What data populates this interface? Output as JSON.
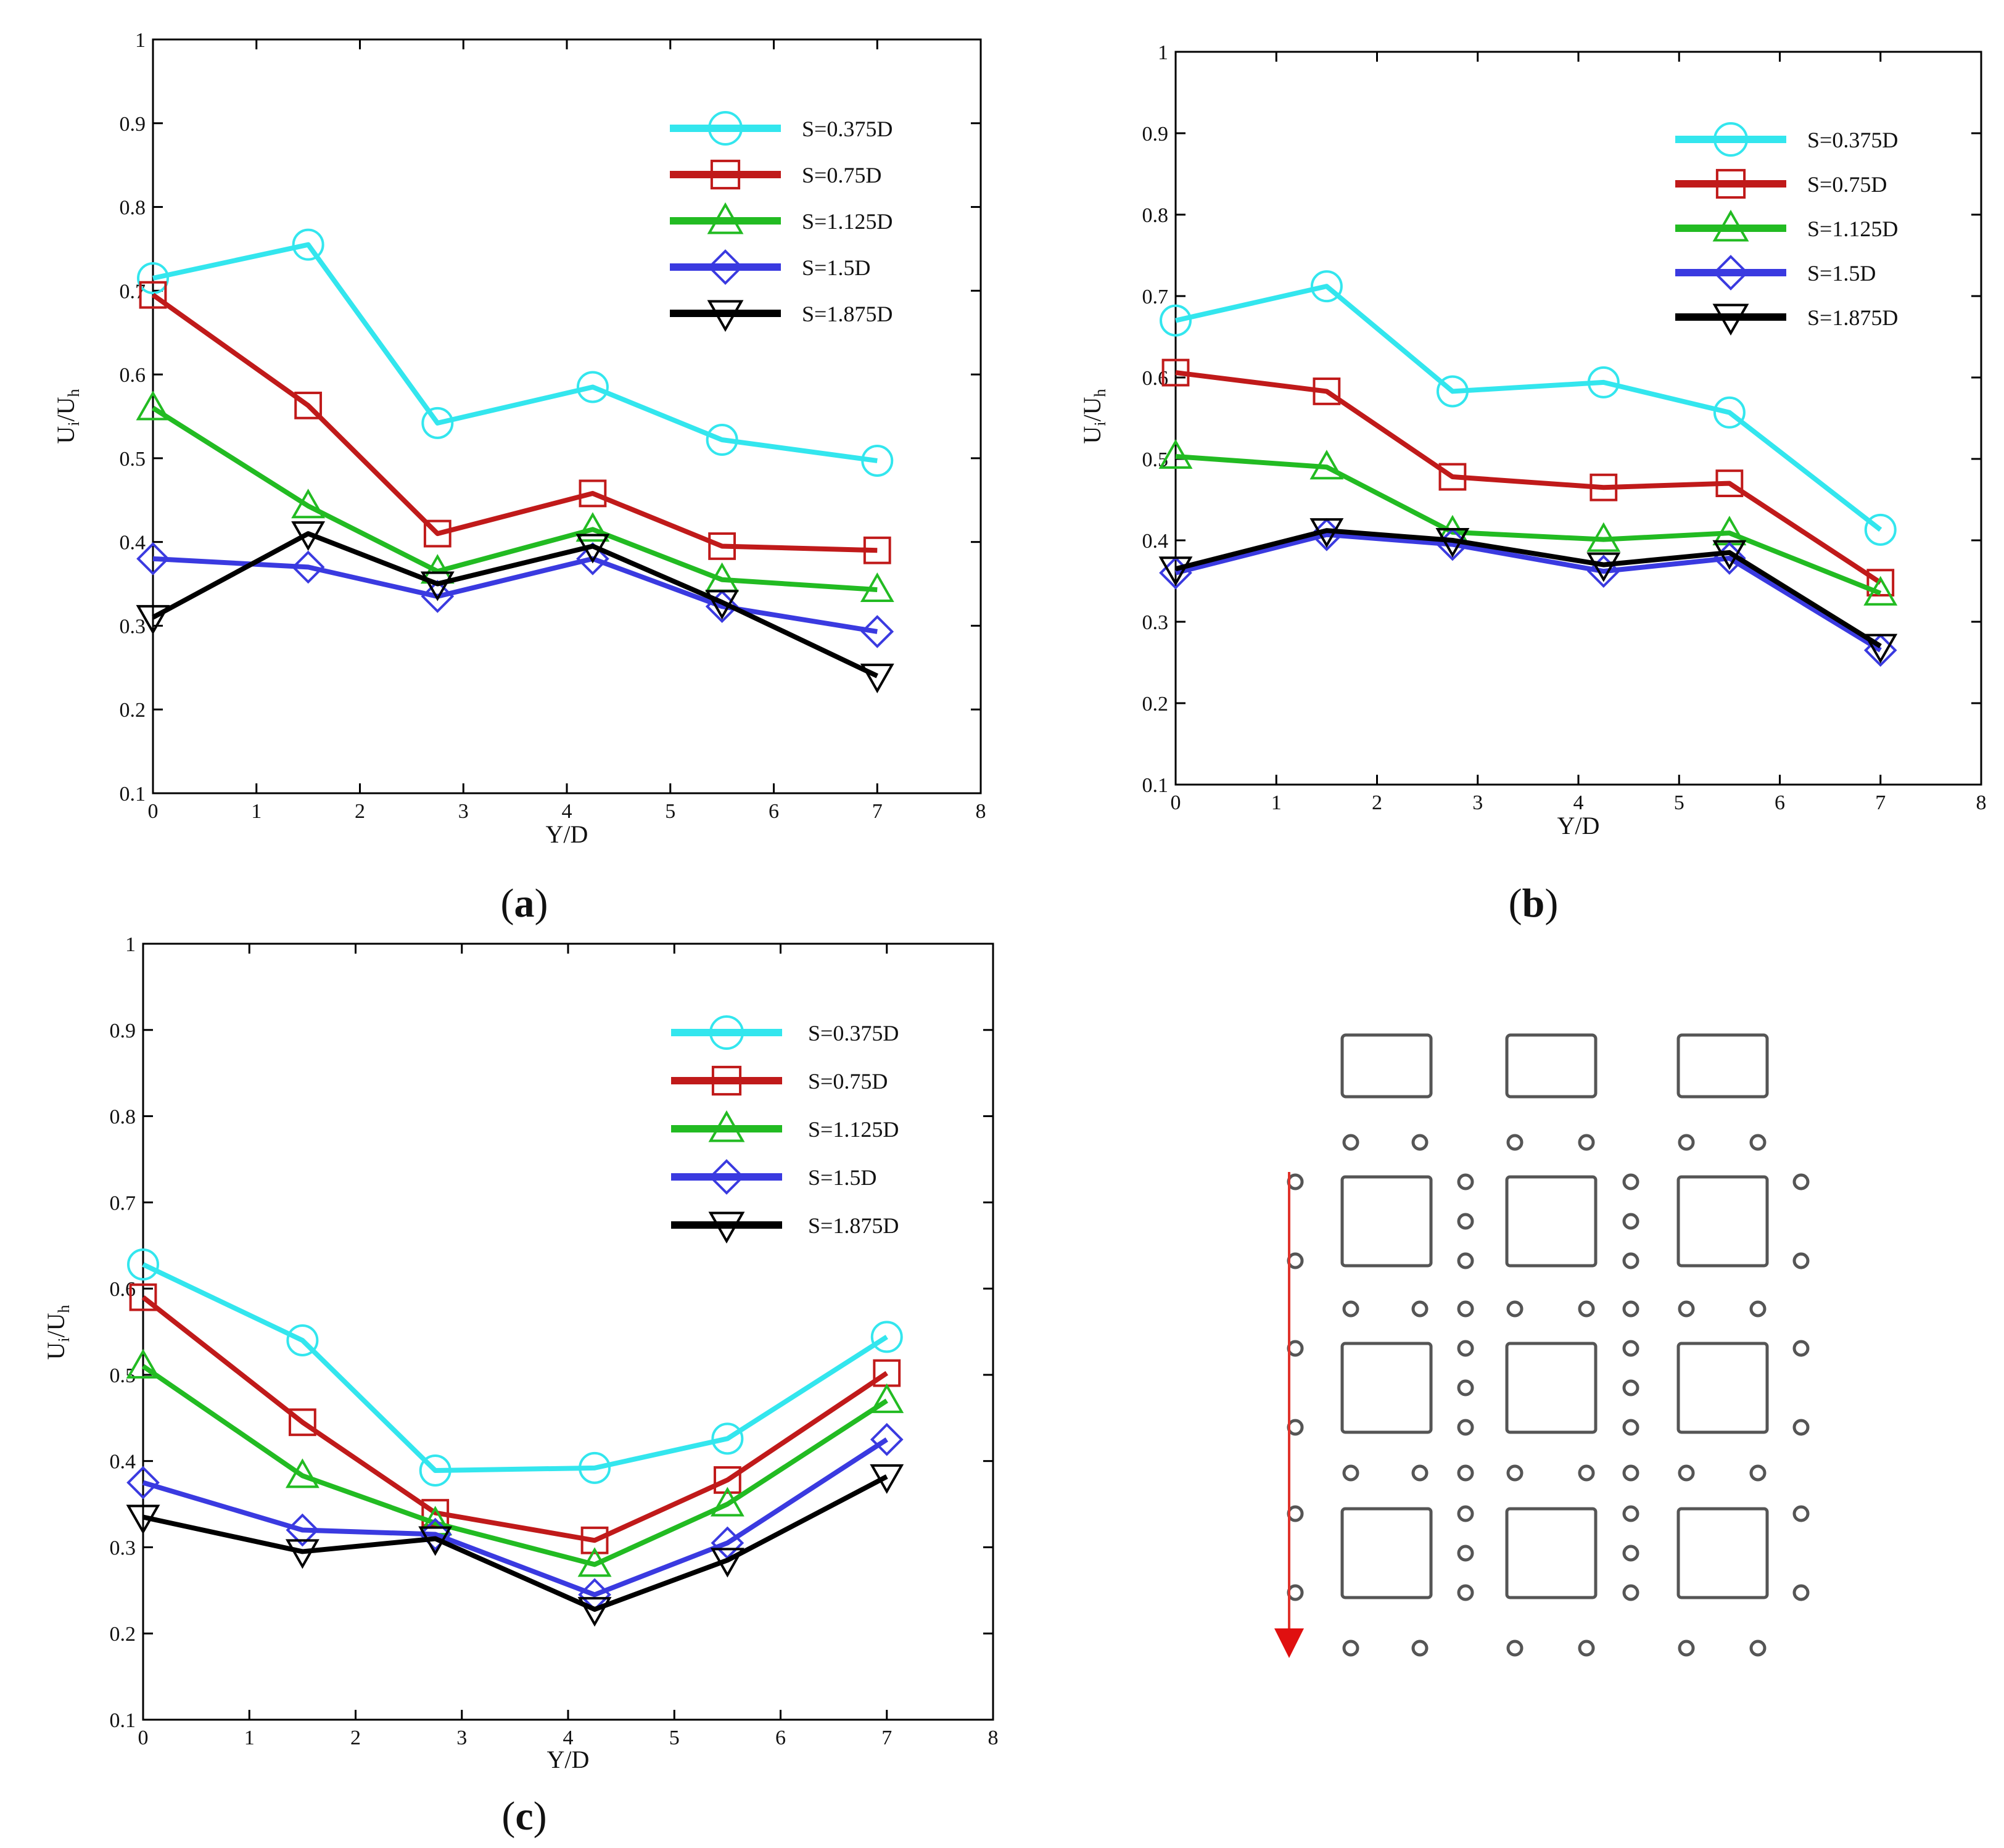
{
  "panel_labels": [
    "(a)",
    "(b)",
    "(c)"
  ],
  "series_colors": {
    "S=0.375D": "#33e6ee",
    "S=0.75D": "#c01a1a",
    "S=1.125D": "#22bb22",
    "S=1.5D": "#3a3ae0",
    "S=1.875D": "#000000"
  },
  "chart_data": [
    {
      "type": "line",
      "panel": "(a)",
      "xlabel": "Y/D",
      "ylabel": "U_i/U_h",
      "xlim": [
        0,
        8
      ],
      "ylim": [
        0.1,
        1
      ],
      "xticks": [
        "0",
        "1",
        "2",
        "3",
        "4",
        "5",
        "6",
        "7",
        "8"
      ],
      "yticks": [
        "0.1",
        "0.2",
        "0.3",
        "0.4",
        "0.5",
        "0.6",
        "0.7",
        "0.8",
        "0.9",
        "1"
      ],
      "grid": false,
      "legend": "top-right",
      "x": [
        0,
        1.5,
        2.75,
        4.25,
        5.5,
        7
      ],
      "series": [
        {
          "name": "S=0.375D",
          "marker": "circle",
          "values": [
            0.715,
            0.755,
            0.542,
            0.585,
            0.522,
            0.497
          ]
        },
        {
          "name": "S=0.75D",
          "marker": "square",
          "values": [
            0.695,
            0.563,
            0.41,
            0.458,
            0.395,
            0.39
          ]
        },
        {
          "name": "S=1.125D",
          "marker": "triangle-up",
          "values": [
            0.56,
            0.443,
            0.365,
            0.415,
            0.355,
            0.343
          ]
        },
        {
          "name": "S=1.5D",
          "marker": "diamond",
          "values": [
            0.38,
            0.37,
            0.335,
            0.38,
            0.323,
            0.293
          ]
        },
        {
          "name": "S=1.875D",
          "marker": "triangle-down",
          "values": [
            0.31,
            0.41,
            0.35,
            0.395,
            0.328,
            0.24
          ]
        }
      ]
    },
    {
      "type": "line",
      "panel": "(b)",
      "xlabel": "Y/D",
      "ylabel": "U_i/U_h",
      "xlim": [
        0,
        8
      ],
      "ylim": [
        0.1,
        1
      ],
      "xticks": [
        "0",
        "1",
        "2",
        "3",
        "4",
        "5",
        "6",
        "7",
        "8"
      ],
      "yticks": [
        "0.1",
        "0.2",
        "0.3",
        "0.4",
        "0.5",
        "0.6",
        "0.7",
        "0.8",
        "0.9",
        "1"
      ],
      "grid": false,
      "legend": "top-right",
      "x": [
        0,
        1.5,
        2.75,
        4.25,
        5.5,
        7
      ],
      "series": [
        {
          "name": "S=0.375D",
          "marker": "circle",
          "values": [
            0.67,
            0.712,
            0.583,
            0.594,
            0.557,
            0.413
          ]
        },
        {
          "name": "S=0.75D",
          "marker": "square",
          "values": [
            0.606,
            0.583,
            0.478,
            0.465,
            0.47,
            0.348
          ]
        },
        {
          "name": "S=1.125D",
          "marker": "triangle-up",
          "values": [
            0.503,
            0.49,
            0.41,
            0.401,
            0.409,
            0.335
          ]
        },
        {
          "name": "S=1.5D",
          "marker": "diamond",
          "values": [
            0.36,
            0.407,
            0.395,
            0.362,
            0.378,
            0.265
          ]
        },
        {
          "name": "S=1.875D",
          "marker": "triangle-down",
          "values": [
            0.365,
            0.412,
            0.4,
            0.37,
            0.385,
            0.27
          ]
        }
      ]
    },
    {
      "type": "line",
      "panel": "(c)",
      "xlabel": "Y/D",
      "ylabel": "U_i/U_h",
      "xlim": [
        0,
        8
      ],
      "ylim": [
        0.1,
        1
      ],
      "xticks": [
        "0",
        "1",
        "2",
        "3",
        "4",
        "5",
        "6",
        "7",
        "8"
      ],
      "yticks": [
        "0.1",
        "0.2",
        "0.3",
        "0.4",
        "0.5",
        "0.6",
        "0.7",
        "0.8",
        "0.9",
        "1"
      ],
      "grid": false,
      "legend": "top-right",
      "x": [
        0,
        1.5,
        2.75,
        4.25,
        5.5,
        7
      ],
      "series": [
        {
          "name": "S=0.375D",
          "marker": "circle",
          "values": [
            0.628,
            0.54,
            0.389,
            0.392,
            0.426,
            0.544
          ]
        },
        {
          "name": "S=0.75D",
          "marker": "square",
          "values": [
            0.59,
            0.445,
            0.34,
            0.308,
            0.378,
            0.502
          ]
        },
        {
          "name": "S=1.125D",
          "marker": "triangle-up",
          "values": [
            0.51,
            0.383,
            0.328,
            0.28,
            0.35,
            0.47
          ]
        },
        {
          "name": "S=1.5D",
          "marker": "diamond",
          "values": [
            0.375,
            0.32,
            0.315,
            0.245,
            0.305,
            0.425
          ]
        },
        {
          "name": "S=1.875D",
          "marker": "triangle-down",
          "values": [
            0.335,
            0.295,
            0.31,
            0.228,
            0.285,
            0.382
          ]
        }
      ]
    }
  ]
}
